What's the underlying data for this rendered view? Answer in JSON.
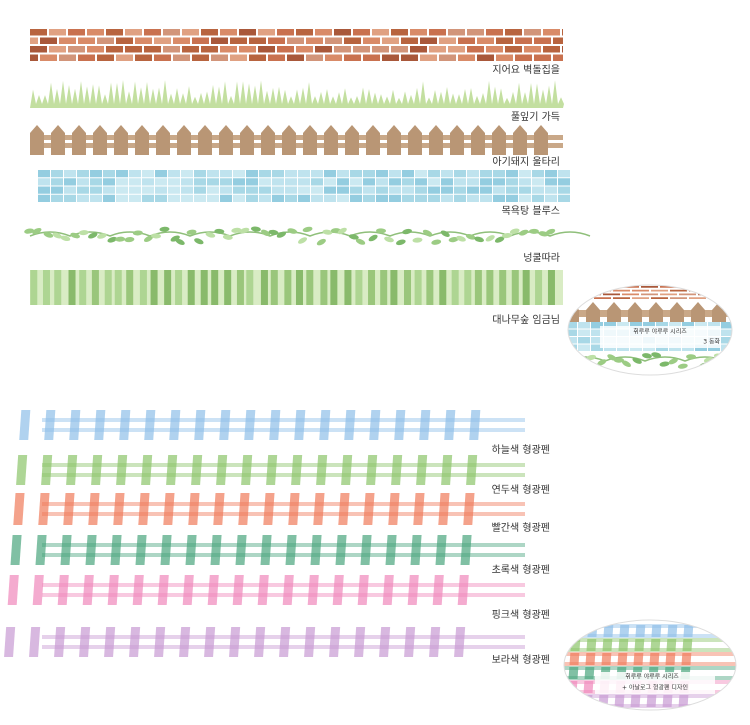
{
  "tapes": [
    {
      "label": "지어요 벽돌집을"
    },
    {
      "label": "풀잎기 가득"
    },
    {
      "label": "아기돼지 울타리"
    },
    {
      "label": "목욕탕 블루스"
    },
    {
      "label": "넝쿨따라"
    },
    {
      "label": "대나무숲 임금님"
    }
  ],
  "badge1": {
    "title": "휘루루 야루루 시리즈",
    "subtitle": "3 동화"
  },
  "highlighters": [
    {
      "label": "하늘색 형광펜",
      "color": "#8fbfe8"
    },
    {
      "label": "연두색 형광펜",
      "color": "#8cc46a"
    },
    {
      "label": "빨간색 형광펜",
      "color": "#f07a5a"
    },
    {
      "label": "초록색 형광펜",
      "color": "#4aa57e"
    },
    {
      "label": "핑크색 형광펜",
      "color": "#f088bb"
    },
    {
      "label": "보라색 형광펜",
      "color": "#c79ad3"
    }
  ],
  "badge2": {
    "title": "휘루루 야루루 시리즈",
    "subtitle": "+ 아날로그 형광펜 디자인"
  }
}
